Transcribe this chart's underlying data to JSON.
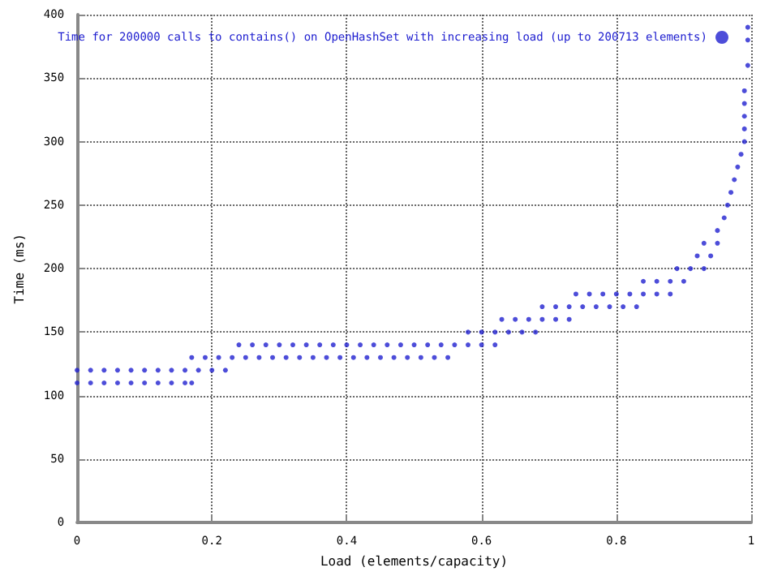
{
  "chart_data": {
    "type": "scatter",
    "xlabel": "Load (elements/capacity)",
    "ylabel": "Time (ms)",
    "xlim": [
      0,
      1
    ],
    "xticks": [
      0,
      0.2,
      0.4,
      0.6,
      0.8,
      1
    ],
    "ylim": [
      0,
      400
    ],
    "yticks": [
      0,
      50,
      100,
      150,
      200,
      250,
      300,
      350,
      400
    ],
    "grid": true,
    "legend": "top right",
    "marker": "circle",
    "series": [
      {
        "name": "Time for 200000 calls to contains() on OpenHashSet with increasing load (up to 200713 elements)",
        "color": "#2020d0",
        "x": [
          0,
          0.02,
          0.04,
          0.06,
          0.08,
          0.1,
          0.12,
          0.14,
          0.16,
          0.17,
          0,
          0.02,
          0.04,
          0.06,
          0.08,
          0.1,
          0.12,
          0.14,
          0.16,
          0.18,
          0.2,
          0.22,
          0.17,
          0.19,
          0.21,
          0.23,
          0.25,
          0.27,
          0.29,
          0.31,
          0.33,
          0.35,
          0.37,
          0.39,
          0.41,
          0.43,
          0.45,
          0.47,
          0.49,
          0.51,
          0.53,
          0.55,
          0.24,
          0.26,
          0.28,
          0.3,
          0.32,
          0.34,
          0.36,
          0.38,
          0.4,
          0.42,
          0.44,
          0.46,
          0.48,
          0.5,
          0.52,
          0.54,
          0.56,
          0.58,
          0.6,
          0.62,
          0.58,
          0.6,
          0.62,
          0.64,
          0.66,
          0.68,
          0.63,
          0.65,
          0.67,
          0.69,
          0.71,
          0.73,
          0.69,
          0.71,
          0.73,
          0.75,
          0.77,
          0.79,
          0.81,
          0.83,
          0.74,
          0.76,
          0.78,
          0.8,
          0.82,
          0.84,
          0.86,
          0.88,
          0.84,
          0.86,
          0.88,
          0.9,
          0.89,
          0.91,
          0.93,
          0.92,
          0.94,
          0.93,
          0.95,
          0.95,
          0.96,
          0.965,
          0.97,
          0.975,
          0.98,
          0.985,
          0.99,
          0.99,
          0.99,
          0.99,
          0.99,
          0.995,
          0.995,
          0.995
        ],
        "values": [
          110,
          110,
          110,
          110,
          110,
          110,
          110,
          110,
          110,
          110,
          120,
          120,
          120,
          120,
          120,
          120,
          120,
          120,
          120,
          120,
          120,
          120,
          130,
          130,
          130,
          130,
          130,
          130,
          130,
          130,
          130,
          130,
          130,
          130,
          130,
          130,
          130,
          130,
          130,
          130,
          130,
          130,
          140,
          140,
          140,
          140,
          140,
          140,
          140,
          140,
          140,
          140,
          140,
          140,
          140,
          140,
          140,
          140,
          140,
          140,
          140,
          140,
          150,
          150,
          150,
          150,
          150,
          150,
          160,
          160,
          160,
          160,
          160,
          160,
          170,
          170,
          170,
          170,
          170,
          170,
          170,
          170,
          180,
          180,
          180,
          180,
          180,
          180,
          180,
          180,
          190,
          190,
          190,
          190,
          200,
          200,
          200,
          210,
          210,
          220,
          220,
          230,
          240,
          250,
          260,
          270,
          280,
          290,
          300,
          310,
          320,
          330,
          340,
          360,
          380,
          390
        ]
      }
    ]
  }
}
